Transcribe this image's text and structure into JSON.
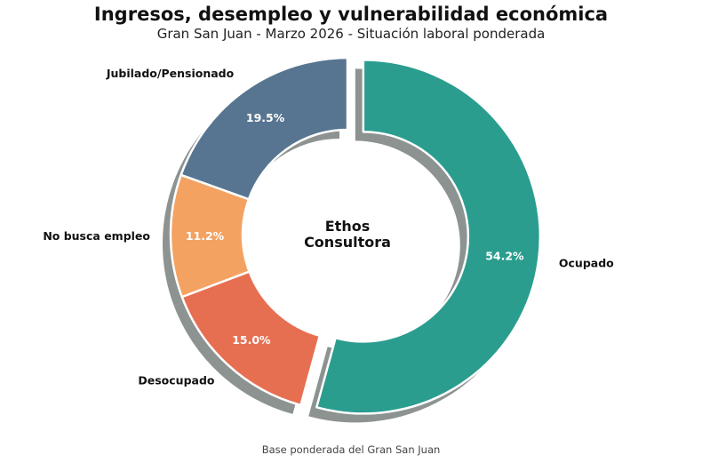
{
  "chart_data": {
    "type": "pie",
    "variant": "donut",
    "title": "Ingresos, desempleo y vulnerabilidad económica",
    "subtitle": "Gran San Juan - Marzo 2026 - Situación laboral ponderada",
    "center_text": [
      "Ethos",
      "Consultora"
    ],
    "footer": "Base ponderada del Gran San Juan",
    "slices": [
      {
        "label": "Ocupado",
        "value": 54.2,
        "pct_label": "54.2%",
        "color": "#2a9d8f",
        "exploded": true
      },
      {
        "label": "Desocupado",
        "value": 15.0,
        "pct_label": "15.0%",
        "color": "#e76f51",
        "exploded": false
      },
      {
        "label": "No busca empleo",
        "value": 11.2,
        "pct_label": "11.2%",
        "color": "#f4a261",
        "exploded": false
      },
      {
        "label": "Jubilado/Pensionado",
        "value": 19.5,
        "pct_label": "19.5%",
        "color": "#577590",
        "exploded": false
      }
    ],
    "start_angle_deg": 90,
    "direction": "clockwise",
    "shadow": true
  }
}
